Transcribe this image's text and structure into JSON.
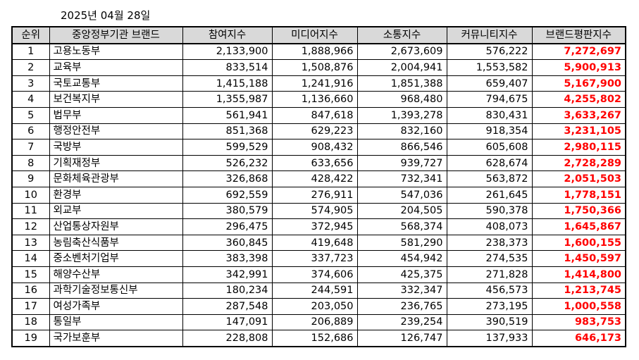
{
  "date": "2025년 04월 28일",
  "headers": {
    "rank": "순위",
    "agency": "중앙정부기관 브랜드",
    "participation": "참여지수",
    "media": "미디어지수",
    "communication": "소통지수",
    "community": "커뮤니티지수",
    "reputation": "브랜드평판지수"
  },
  "colors": {
    "header_bg": "#d9d9d9",
    "total_text": "#ff0000"
  },
  "rows": [
    {
      "rank": "1",
      "name": "고용노동부",
      "participation": "2,133,900",
      "media": "1,888,966",
      "communication": "2,673,609",
      "community": "576,222",
      "total": "7,272,697"
    },
    {
      "rank": "2",
      "name": "교육부",
      "participation": "833,514",
      "media": "1,508,876",
      "communication": "2,004,941",
      "community": "1,553,582",
      "total": "5,900,913"
    },
    {
      "rank": "3",
      "name": "국토교통부",
      "participation": "1,415,188",
      "media": "1,241,916",
      "communication": "1,851,388",
      "community": "659,407",
      "total": "5,167,900"
    },
    {
      "rank": "4",
      "name": "보건복지부",
      "participation": "1,355,987",
      "media": "1,136,660",
      "communication": "968,480",
      "community": "794,675",
      "total": "4,255,802"
    },
    {
      "rank": "5",
      "name": "법무부",
      "participation": "561,941",
      "media": "847,618",
      "communication": "1,393,278",
      "community": "830,431",
      "total": "3,633,267"
    },
    {
      "rank": "6",
      "name": "행정안전부",
      "participation": "851,368",
      "media": "629,223",
      "communication": "832,160",
      "community": "918,354",
      "total": "3,231,105"
    },
    {
      "rank": "7",
      "name": "국방부",
      "participation": "599,529",
      "media": "908,432",
      "communication": "866,546",
      "community": "605,608",
      "total": "2,980,115"
    },
    {
      "rank": "8",
      "name": "기획재정부",
      "participation": "526,232",
      "media": "633,656",
      "communication": "939,727",
      "community": "628,674",
      "total": "2,728,289"
    },
    {
      "rank": "9",
      "name": "문화체육관광부",
      "participation": "326,868",
      "media": "428,422",
      "communication": "732,341",
      "community": "563,872",
      "total": "2,051,503"
    },
    {
      "rank": "10",
      "name": "환경부",
      "participation": "692,559",
      "media": "276,911",
      "communication": "547,036",
      "community": "261,645",
      "total": "1,778,151"
    },
    {
      "rank": "11",
      "name": "외교부",
      "participation": "380,579",
      "media": "574,905",
      "communication": "204,505",
      "community": "590,378",
      "total": "1,750,366"
    },
    {
      "rank": "12",
      "name": "산업통상자원부",
      "participation": "296,475",
      "media": "372,945",
      "communication": "568,374",
      "community": "408,073",
      "total": "1,645,867"
    },
    {
      "rank": "13",
      "name": "농림축산식품부",
      "participation": "360,845",
      "media": "419,648",
      "communication": "581,290",
      "community": "238,373",
      "total": "1,600,155"
    },
    {
      "rank": "14",
      "name": "중소벤처기업부",
      "participation": "383,398",
      "media": "337,723",
      "communication": "454,942",
      "community": "274,535",
      "total": "1,450,597"
    },
    {
      "rank": "15",
      "name": "해양수산부",
      "participation": "342,991",
      "media": "374,606",
      "communication": "425,375",
      "community": "271,828",
      "total": "1,414,800"
    },
    {
      "rank": "16",
      "name": "과학기술정보통신부",
      "participation": "180,234",
      "media": "244,591",
      "communication": "332,347",
      "community": "456,573",
      "total": "1,213,745"
    },
    {
      "rank": "17",
      "name": "여성가족부",
      "participation": "287,548",
      "media": "203,050",
      "communication": "236,765",
      "community": "273,195",
      "total": "1,000,558"
    },
    {
      "rank": "18",
      "name": "통일부",
      "participation": "147,091",
      "media": "206,889",
      "communication": "239,254",
      "community": "390,519",
      "total": "983,753"
    },
    {
      "rank": "19",
      "name": "국가보훈부",
      "participation": "228,808",
      "media": "152,686",
      "communication": "126,747",
      "community": "137,933",
      "total": "646,173"
    }
  ]
}
